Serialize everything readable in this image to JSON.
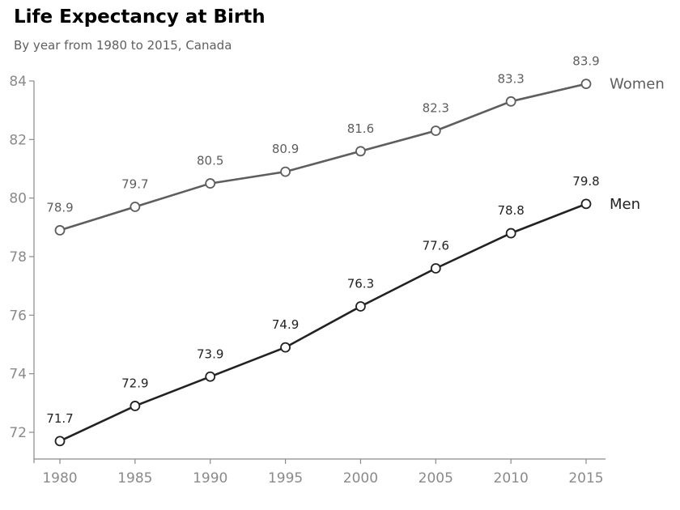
{
  "title": "Life Expectancy at Birth",
  "subtitle": "By year from 1980 to 2015, Canada",
  "colors": {
    "women": "#5e5e5e",
    "men": "#222222",
    "axis": "#8a8a8a",
    "subtitle": "#5f5f5f",
    "marker_fill": "#ffffff"
  },
  "chart_data": {
    "type": "line",
    "title": "Life Expectancy at Birth",
    "subtitle": "By year from 1980 to 2015, Canada",
    "x": [
      1980,
      1985,
      1990,
      1995,
      2000,
      2005,
      2010,
      2015
    ],
    "x_ticks": [
      "1980",
      "1985",
      "1990",
      "1995",
      "2000",
      "2005",
      "2010",
      "2015"
    ],
    "y_ticks": [
      "72",
      "74",
      "76",
      "78",
      "80",
      "82",
      "84"
    ],
    "ylim": [
      71,
      84
    ],
    "xlim": [
      1980,
      2015
    ],
    "grid": false,
    "legend": "end-of-line labels",
    "series": [
      {
        "name": "Women",
        "values": [
          78.9,
          79.7,
          80.5,
          80.9,
          81.6,
          82.3,
          83.3,
          83.9
        ],
        "labels": [
          "78.9",
          "79.7",
          "80.5",
          "80.9",
          "81.6",
          "82.3",
          "83.3",
          "83.9"
        ],
        "color": "#5e5e5e"
      },
      {
        "name": "Men",
        "values": [
          71.7,
          72.9,
          73.9,
          74.9,
          76.3,
          77.6,
          78.8,
          79.8
        ],
        "labels": [
          "71.7",
          "72.9",
          "73.9",
          "74.9",
          "76.3",
          "77.6",
          "78.8",
          "79.8"
        ],
        "color": "#222222"
      }
    ]
  }
}
